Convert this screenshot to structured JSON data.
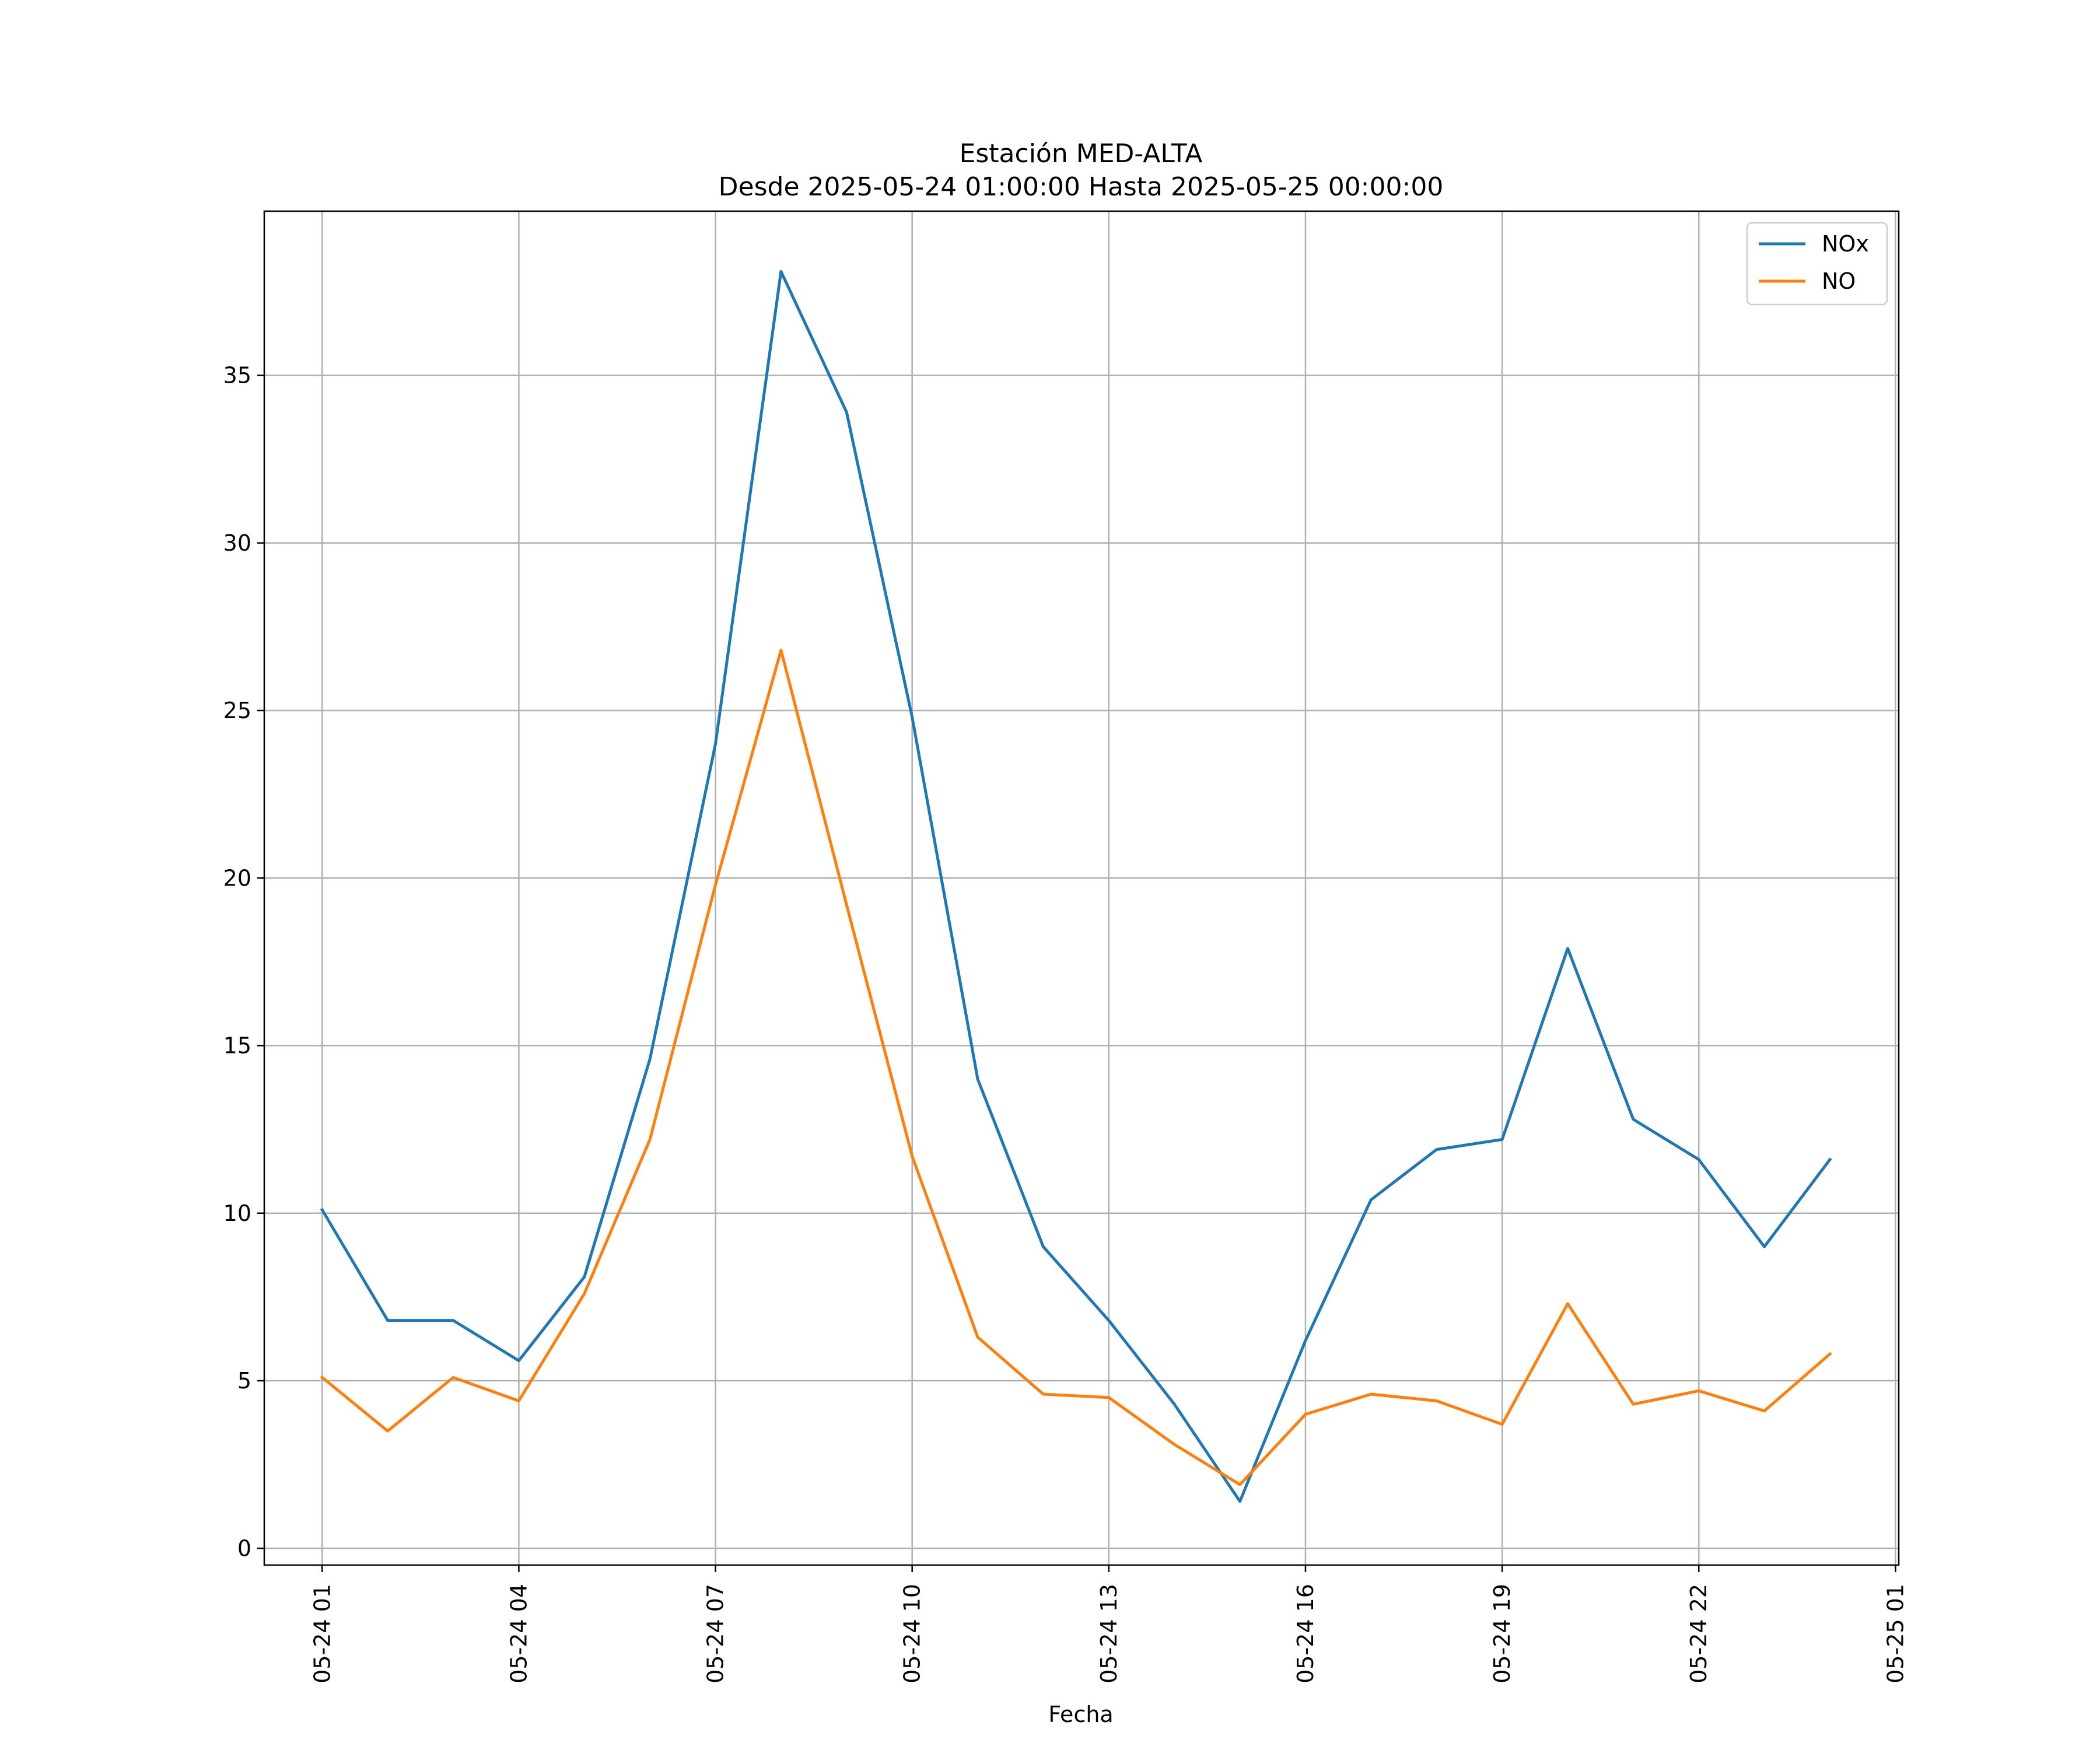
{
  "chart_data": {
    "type": "line",
    "title": "Estación MED-ALTA",
    "subtitle": "Desde 2025-05-24 01:00:00 Hasta 2025-05-25 00:00:00",
    "xlabel": "Fecha",
    "ylabel": "",
    "x": [
      "05-24 01",
      "05-24 02",
      "05-24 03",
      "05-24 04",
      "05-24 05",
      "05-24 06",
      "05-24 07",
      "05-24 08",
      "05-24 09",
      "05-24 10",
      "05-24 11",
      "05-24 12",
      "05-24 13",
      "05-24 14",
      "05-24 15",
      "05-24 16",
      "05-24 17",
      "05-24 18",
      "05-24 19",
      "05-24 20",
      "05-24 21",
      "05-24 22",
      "05-24 23",
      "05-25 00"
    ],
    "x_ticks": [
      "05-24 01",
      "05-24 04",
      "05-24 07",
      "05-24 10",
      "05-24 13",
      "05-24 16",
      "05-24 19",
      "05-24 22",
      "05-25 01"
    ],
    "xlim": [
      "05-24 00:07",
      "05-25 01:03"
    ],
    "ylim": [
      -0.5,
      39.9
    ],
    "y_ticks": [
      0,
      5,
      10,
      15,
      20,
      25,
      30,
      35
    ],
    "grid": true,
    "legend_position": "top-right",
    "series": [
      {
        "name": "NOx",
        "color": "#1f77b4",
        "values": [
          10.1,
          6.8,
          6.8,
          5.6,
          8.1,
          14.6,
          24.0,
          38.1,
          33.9,
          24.8,
          14.0,
          9.0,
          6.8,
          4.3,
          1.4,
          6.2,
          10.4,
          11.9,
          12.2,
          17.9,
          12.8,
          11.6,
          9.0,
          11.6
        ]
      },
      {
        "name": "NO",
        "color": "#ff7f0e",
        "values": [
          5.1,
          3.5,
          5.1,
          4.4,
          7.6,
          12.2,
          19.8,
          26.8,
          19.2,
          11.7,
          6.3,
          4.6,
          4.5,
          3.1,
          1.9,
          4.0,
          4.6,
          4.4,
          3.7,
          7.3,
          4.3,
          4.7,
          4.1,
          5.8
        ]
      }
    ]
  }
}
